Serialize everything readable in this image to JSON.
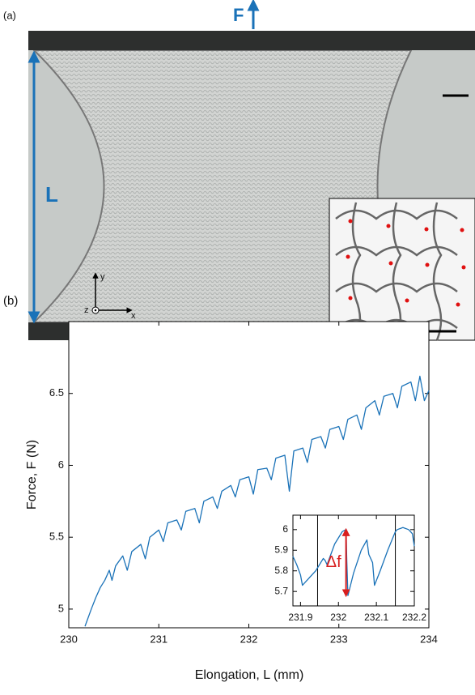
{
  "panel_a": {
    "label": "(a)",
    "force": "F",
    "length": "L",
    "axes": [
      "x",
      "y",
      "z"
    ]
  },
  "panel_b_label": "(b)",
  "chart_data": [
    {
      "type": "line",
      "x_label": "Elongation, L (mm)",
      "y_label": "Force, F (N)",
      "color": "#1a72b8",
      "xlim": [
        230,
        234
      ],
      "ylim": [
        4.87,
        7.0
      ],
      "xticks": [
        230,
        231,
        232,
        233,
        234
      ],
      "yticks": [
        5,
        5.5,
        6,
        6.5
      ],
      "x": [
        230.18,
        230.25,
        230.3,
        230.35,
        230.4,
        230.45,
        230.48,
        230.52,
        230.6,
        230.65,
        230.7,
        230.8,
        230.85,
        230.9,
        231.0,
        231.05,
        231.1,
        231.2,
        231.25,
        231.3,
        231.4,
        231.45,
        231.5,
        231.6,
        231.65,
        231.7,
        231.8,
        231.85,
        231.9,
        232.0,
        232.05,
        232.1,
        232.2,
        232.25,
        232.3,
        232.4,
        232.45,
        232.5,
        232.6,
        232.65,
        232.7,
        232.8,
        232.85,
        232.9,
        233.0,
        233.05,
        233.1,
        233.2,
        233.25,
        233.3,
        233.4,
        233.45,
        233.5,
        233.6,
        233.65,
        233.7,
        233.8,
        233.85,
        233.9,
        233.95,
        234.0
      ],
      "values": [
        4.88,
        5.0,
        5.08,
        5.15,
        5.2,
        5.27,
        5.2,
        5.3,
        5.37,
        5.27,
        5.4,
        5.45,
        5.35,
        5.5,
        5.55,
        5.47,
        5.6,
        5.62,
        5.55,
        5.68,
        5.7,
        5.6,
        5.75,
        5.78,
        5.7,
        5.82,
        5.86,
        5.78,
        5.9,
        5.92,
        5.8,
        5.97,
        5.98,
        5.9,
        6.05,
        6.07,
        5.82,
        6.1,
        6.12,
        6.02,
        6.18,
        6.2,
        6.12,
        6.25,
        6.27,
        6.18,
        6.32,
        6.35,
        6.25,
        6.4,
        6.45,
        6.35,
        6.48,
        6.5,
        6.4,
        6.55,
        6.58,
        6.45,
        6.62,
        6.45,
        6.52
      ]
    },
    {
      "type": "line",
      "color": "#1a72b8",
      "xlim": [
        231.88,
        232.2
      ],
      "ylim": [
        5.63,
        6.07
      ],
      "xticks": [
        231.9,
        232,
        232.1,
        232.2
      ],
      "yticks": [
        5.7,
        5.8,
        5.9,
        6
      ],
      "vlines": [
        231.945,
        232.15
      ],
      "annotation": {
        "text": "Δf",
        "x": 232.02,
        "y1": 6.0,
        "y2": 5.68
      },
      "x": [
        231.88,
        231.89,
        231.9,
        231.905,
        231.92,
        231.94,
        231.96,
        231.965,
        231.97,
        231.99,
        232.01,
        232.02,
        232.022,
        232.025,
        232.04,
        232.06,
        232.075,
        232.08,
        232.09,
        232.095,
        232.11,
        232.13,
        232.15,
        232.155,
        232.17,
        232.185,
        232.195,
        232.2
      ],
      "values": [
        5.87,
        5.83,
        5.78,
        5.73,
        5.76,
        5.8,
        5.86,
        5.85,
        5.83,
        5.93,
        5.99,
        6.0,
        5.85,
        5.68,
        5.79,
        5.9,
        5.95,
        5.88,
        5.84,
        5.73,
        5.8,
        5.9,
        5.99,
        6.0,
        6.01,
        6.0,
        5.98,
        5.92
      ]
    }
  ]
}
